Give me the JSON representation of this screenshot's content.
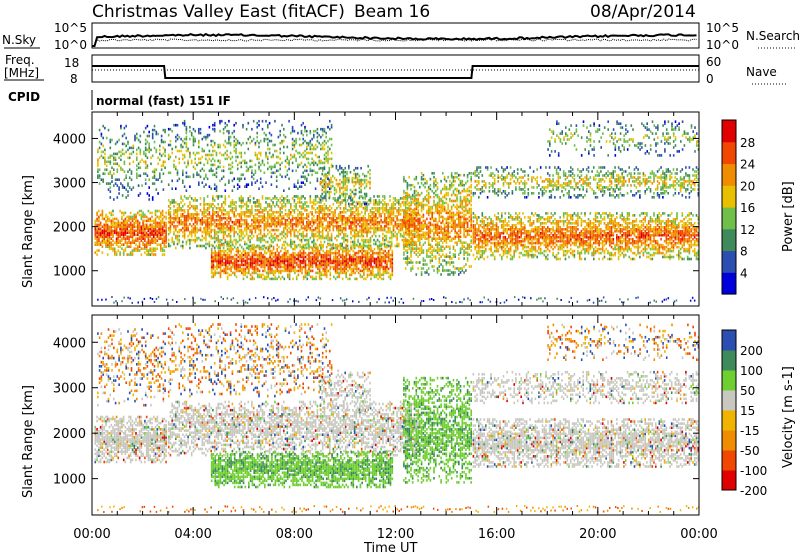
{
  "header": {
    "station": "Christmas Valley East (fitACF)",
    "beam": "Beam 16",
    "date": "08/Apr/2014"
  },
  "params": {
    "nsky_label": "N.Sky",
    "nsearch_label": "N.Search",
    "freq_label_1": "Freq.",
    "freq_label_2": "[MHz]",
    "nave_label": "Nave",
    "cpid_label": "CPID",
    "cpid_value": "normal (fast) 151 IF",
    "nsky_ticks": [
      "10^5",
      "10^0"
    ],
    "nsearch_ticks": [
      "10^5",
      "10^0"
    ],
    "freq_ticks": [
      "18",
      "8"
    ],
    "nave_ticks": [
      "60",
      "0"
    ]
  },
  "colors": {
    "power": [
      "#0000dd",
      "#2a4fb0",
      "#3e8a5a",
      "#6fbf4a",
      "#e8c000",
      "#f08c00",
      "#f04800",
      "#e00000"
    ],
    "velocity": [
      "#e00000",
      "#f04800",
      "#f08c00",
      "#f0b400",
      "#c8c8c0",
      "#6fcf30",
      "#3e8a5a",
      "#2a4fb0"
    ]
  },
  "chart_data": {
    "type": "heatmap",
    "xlabel": "Time UT",
    "x_ticks": [
      "00:00",
      "04:00",
      "08:00",
      "12:00",
      "16:00",
      "20:00",
      "00:00"
    ],
    "xlim_hours": [
      0,
      24
    ],
    "panels": [
      {
        "name": "power",
        "ylabel": "Slant Range [km]",
        "y_ticks": [
          1000,
          2000,
          3000,
          4000
        ],
        "ylim": [
          200,
          4600
        ],
        "colorbar_label": "Power [dB]",
        "colorbar_ticks": [
          4,
          8,
          12,
          16,
          20,
          24,
          28
        ]
      },
      {
        "name": "velocity",
        "ylabel": "Slant Range [km]",
        "y_ticks": [
          1000,
          2000,
          3000,
          4000
        ],
        "ylim": [
          200,
          4600
        ],
        "colorbar_label": "Velocity [m s-1]",
        "colorbar_ticks": [
          200,
          100,
          50,
          15,
          -15,
          -50,
          -100,
          -200
        ]
      }
    ],
    "freq_mhz": [
      {
        "t": 0,
        "v": 16
      },
      {
        "t": 2.85,
        "v": 16
      },
      {
        "t": 2.9,
        "v": 10
      },
      {
        "t": 15.0,
        "v": 10
      },
      {
        "t": 15.05,
        "v": 16
      },
      {
        "t": 24,
        "v": 16
      }
    ]
  }
}
